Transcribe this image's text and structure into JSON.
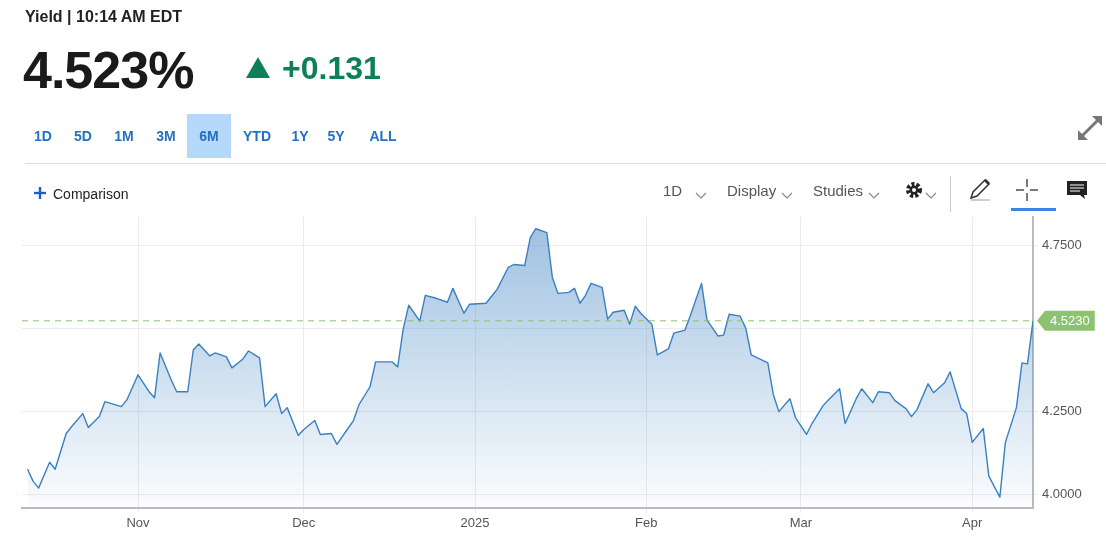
{
  "chart_data": {
    "type": "area",
    "title": "Yield | 10:14 AM EDT",
    "subtitle": "4.523%",
    "annotations": [
      "+0.131",
      "1D",
      "5D",
      "1M",
      "3M",
      "6M",
      "YTD",
      "1Y",
      "5Y",
      "ALL",
      "Comparison",
      "1D",
      "Display",
      "Studies"
    ],
    "series": [
      {
        "color": "#3a80c0",
        "x": [
          "2024-10-12",
          "2024-10-13",
          "2024-10-14",
          "2024-10-16",
          "2024-10-17",
          "2024-10-19",
          "2024-10-20",
          "2024-10-22",
          "2024-10-23",
          "2024-10-25",
          "2024-10-26",
          "2024-10-29",
          "2024-10-30",
          "2024-11-01",
          "2024-11-03",
          "2024-11-04",
          "2024-11-05",
          "2024-11-07",
          "2024-11-08",
          "2024-11-10",
          "2024-11-11",
          "2024-11-12",
          "2024-11-14",
          "2024-11-15",
          "2024-11-17",
          "2024-11-18",
          "2024-11-20",
          "2024-11-21",
          "2024-11-23",
          "2024-11-24",
          "2024-11-26",
          "2024-11-27",
          "2024-11-28",
          "2024-11-30",
          "2024-12-01",
          "2024-12-03",
          "2024-12-04",
          "2024-12-06",
          "2024-12-07",
          "2024-12-09",
          "2024-12-10",
          "2024-12-11",
          "2024-12-13",
          "2024-12-14",
          "2024-12-17",
          "2024-12-18",
          "2024-12-19",
          "2024-12-20",
          "2024-12-22",
          "2024-12-23",
          "2024-12-25",
          "2024-12-27",
          "2024-12-28",
          "2024-12-30",
          "2024-12-31",
          "2025-01-03",
          "2025-01-04",
          "2025-01-05",
          "2025-01-07",
          "2025-01-08",
          "2025-01-10",
          "2025-01-11",
          "2025-01-12",
          "2025-01-14",
          "2025-01-15",
          "2025-01-16",
          "2025-01-18",
          "2025-01-19",
          "2025-01-20",
          "2025-01-21",
          "2025-01-22",
          "2025-01-24",
          "2025-01-25",
          "2025-01-26",
          "2025-01-28",
          "2025-01-29",
          "2025-01-30",
          "2025-01-31",
          "2025-02-02",
          "2025-02-03",
          "2025-02-05",
          "2025-02-06",
          "2025-02-08",
          "2025-02-09",
          "2025-02-11",
          "2025-02-12",
          "2025-02-14",
          "2025-02-15",
          "2025-02-16",
          "2025-02-18",
          "2025-02-19",
          "2025-02-20",
          "2025-02-23",
          "2025-02-24",
          "2025-02-25",
          "2025-02-27",
          "2025-02-28",
          "2025-03-02",
          "2025-03-03",
          "2025-03-05",
          "2025-03-06",
          "2025-03-08",
          "2025-03-09",
          "2025-03-11",
          "2025-03-12",
          "2025-03-14",
          "2025-03-15",
          "2025-03-17",
          "2025-03-18",
          "2025-03-20",
          "2025-03-21",
          "2025-03-22",
          "2025-03-24",
          "2025-03-25",
          "2025-03-27",
          "2025-03-28",
          "2025-03-30",
          "2025-03-31",
          "2025-04-01",
          "2025-04-03",
          "2025-04-04",
          "2025-04-06",
          "2025-04-07",
          "2025-04-09",
          "2025-04-10",
          "2025-04-11",
          "2025-04-12"
        ],
        "values": [
          4.075,
          4.039,
          4.018,
          4.096,
          4.075,
          4.183,
          4.204,
          4.243,
          4.201,
          4.234,
          4.279,
          4.264,
          4.285,
          4.36,
          4.309,
          4.291,
          4.426,
          4.345,
          4.309,
          4.309,
          4.435,
          4.453,
          4.417,
          4.426,
          4.414,
          4.381,
          4.408,
          4.432,
          4.411,
          4.264,
          4.303,
          4.243,
          4.261,
          4.177,
          4.195,
          4.222,
          4.18,
          4.183,
          4.15,
          4.198,
          4.222,
          4.27,
          4.324,
          4.399,
          4.399,
          4.384,
          4.498,
          4.57,
          4.522,
          4.6,
          4.591,
          4.579,
          4.621,
          4.546,
          4.573,
          4.576,
          4.597,
          4.618,
          4.684,
          4.693,
          4.69,
          4.774,
          4.801,
          4.789,
          4.654,
          4.606,
          4.609,
          4.621,
          4.576,
          4.6,
          4.636,
          4.624,
          4.528,
          4.549,
          4.555,
          4.513,
          4.567,
          4.546,
          4.513,
          4.42,
          4.438,
          4.486,
          4.495,
          4.54,
          4.636,
          4.525,
          4.477,
          4.48,
          4.543,
          4.537,
          4.501,
          4.42,
          4.396,
          4.3,
          4.249,
          4.288,
          4.231,
          4.18,
          4.213,
          4.267,
          4.285,
          4.318,
          4.213,
          4.288,
          4.318,
          4.276,
          4.309,
          4.306,
          4.282,
          4.258,
          4.234,
          4.255,
          4.333,
          4.306,
          4.336,
          4.369,
          4.258,
          4.243,
          4.156,
          4.198,
          4.054,
          3.991,
          4.156,
          4.261,
          4.396,
          4.393,
          4.523
        ]
      }
    ],
    "xlim": [
      "2024-10-11",
      "2025-04-12"
    ],
    "xticks": [
      {
        "value": "2024-11-01",
        "label": "Nov"
      },
      {
        "value": "2024-12-01",
        "label": "Dec"
      },
      {
        "value": "2025-01-01",
        "label": "2025"
      },
      {
        "value": "2025-02-01",
        "label": "Feb"
      },
      {
        "value": "2025-03-01",
        "label": "Mar"
      },
      {
        "value": "2025-04-01",
        "label": "Apr"
      }
    ],
    "ylim": [
      3.958,
      4.837
    ],
    "yticks": [
      {
        "value": 4,
        "label": "4.0000"
      },
      {
        "value": 4.25,
        "label": "4.2500"
      },
      {
        "value": 4.5,
        "label": null
      },
      {
        "value": 4.75,
        "label": "4.7500"
      }
    ],
    "ref_lines": [
      {
        "axis": "y",
        "value": 4.523,
        "label": "4.5230",
        "color": "#8dc26f",
        "line_style": "dashed"
      }
    ],
    "grid": true,
    "legend": false
  }
}
